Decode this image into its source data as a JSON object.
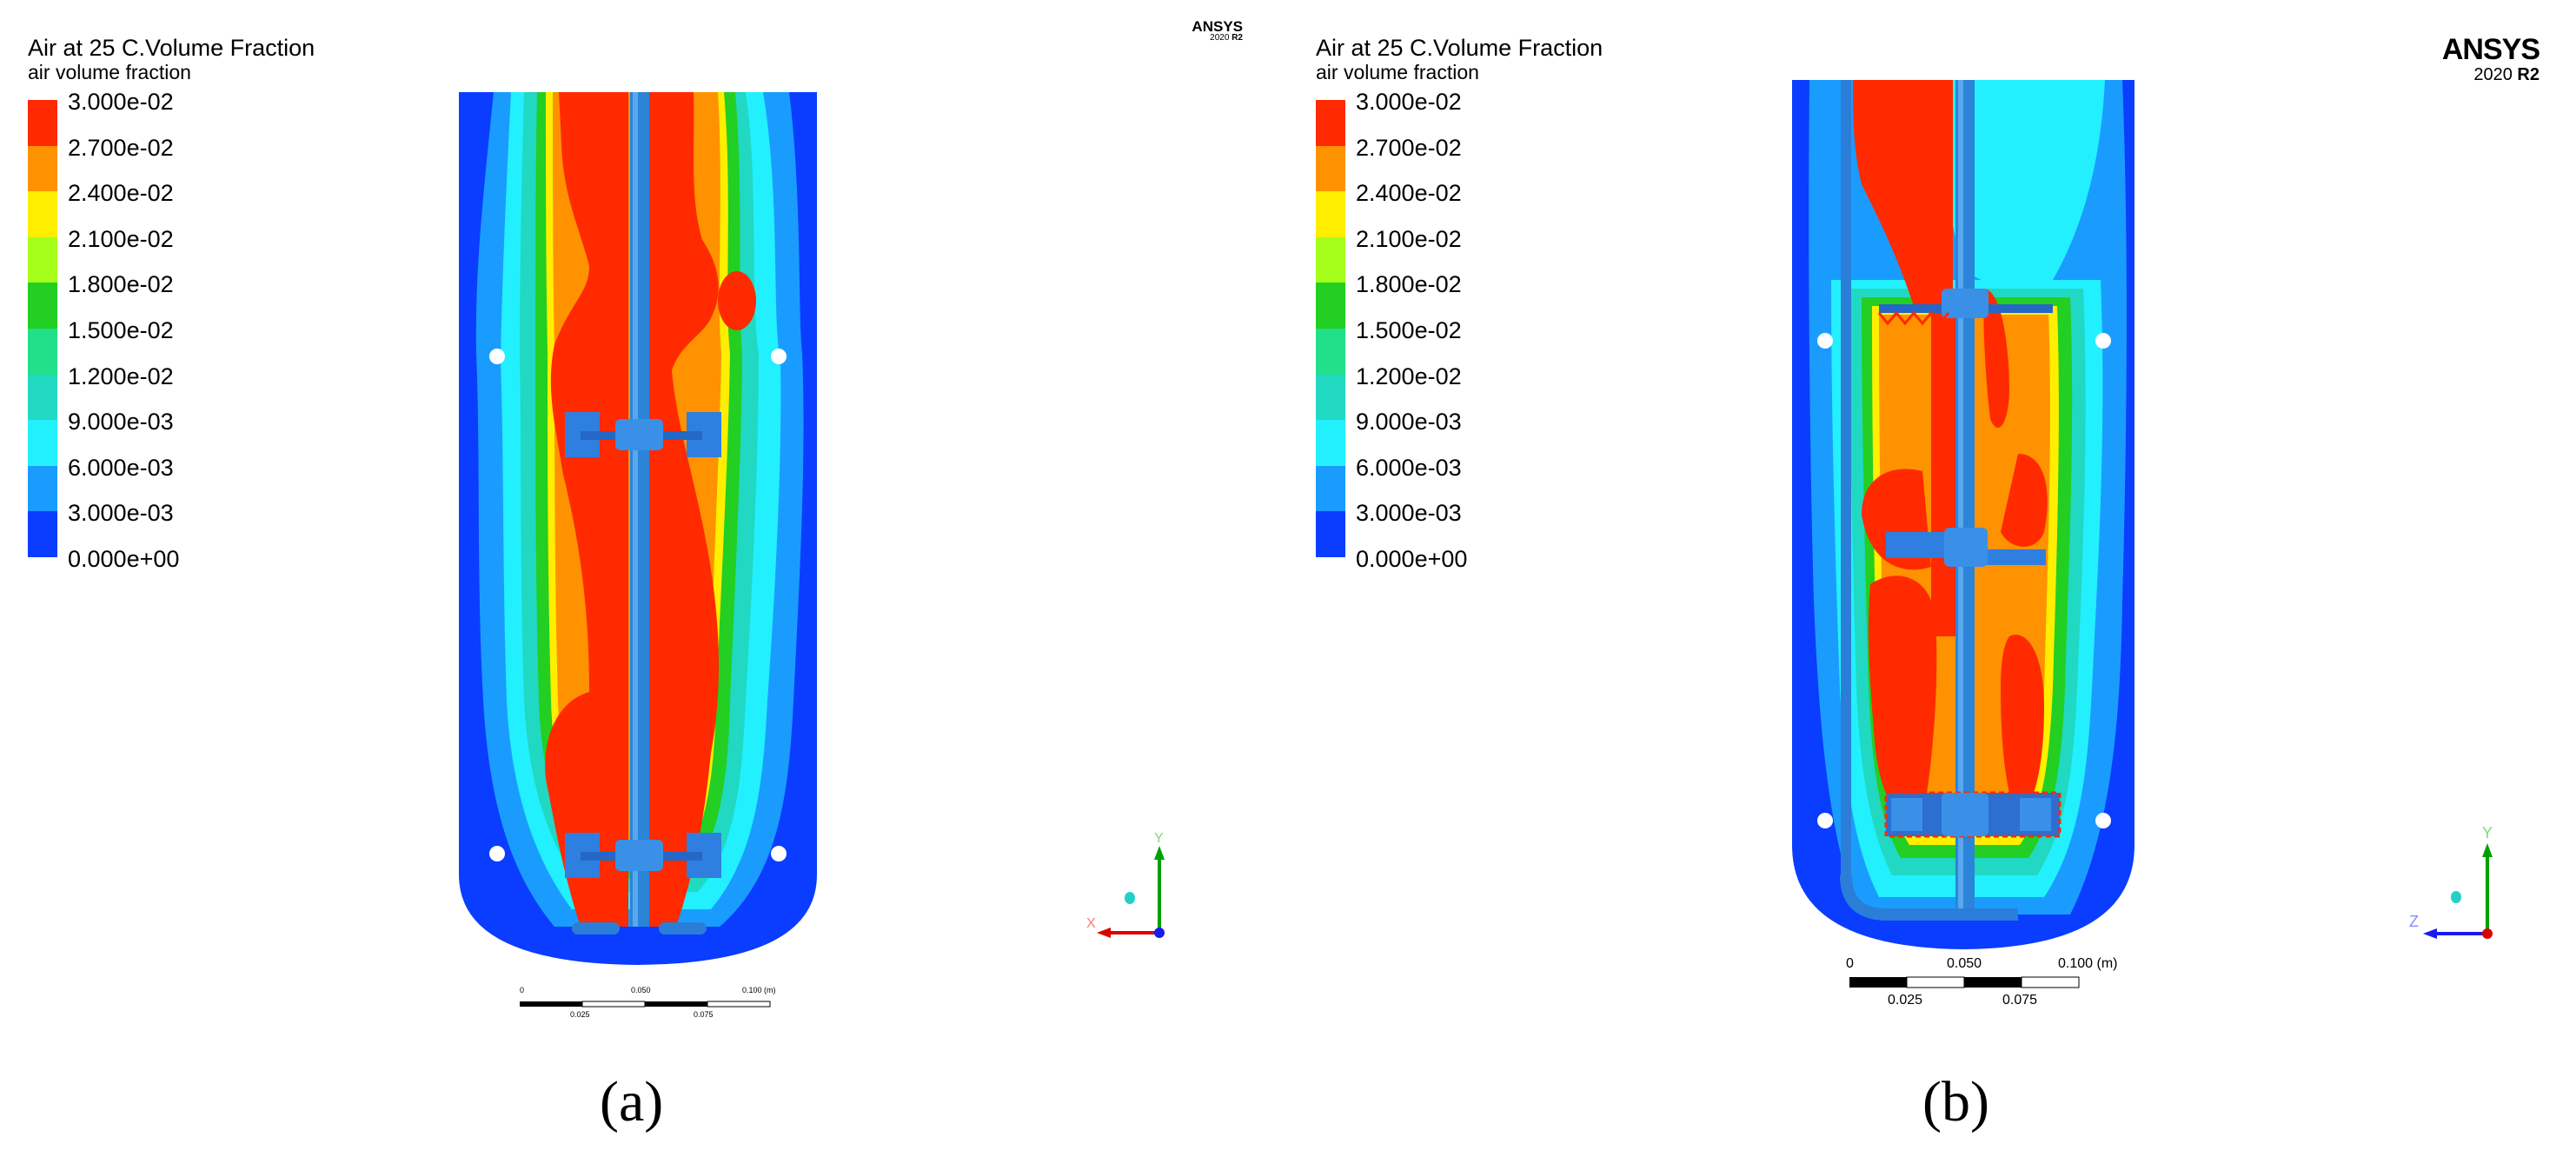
{
  "colors": {
    "background": "#ffffff",
    "scale": [
      "#ff2a00",
      "#ff9200",
      "#ffee00",
      "#a6ff1a",
      "#22cf22",
      "#22e08a",
      "#21d8c2",
      "#22f0ff",
      "#1a9cff",
      "#0a3dff"
    ],
    "axis_x": "#dd0000",
    "axis_y": "#00a000",
    "axis_z": "#1a1aee"
  },
  "legend": {
    "title": "Air at 25 C.Volume Fraction",
    "subtitle": "air volume fraction",
    "labels": [
      "3.000e-02",
      "2.700e-02",
      "2.400e-02",
      "2.100e-02",
      "1.800e-02",
      "1.500e-02",
      "1.200e-02",
      "9.000e-03",
      "6.000e-03",
      "3.000e-03",
      "0.000e+00"
    ]
  },
  "logo": {
    "brand": "ANSYS",
    "version_year": "2020",
    "version_rel": "R2"
  },
  "panels": [
    {
      "caption": "(a)",
      "scale_bar": {
        "top_labels": [
          "0",
          "0.050",
          "0.100 (m)"
        ],
        "bottom_labels": [
          "0.025",
          "0.075"
        ]
      },
      "triad": {
        "vertical": "Y",
        "horizontal": "X"
      }
    },
    {
      "caption": "(b)",
      "scale_bar": {
        "top_labels": [
          "0",
          "0.050",
          "0.100 (m)"
        ],
        "bottom_labels": [
          "0.025",
          "0.075"
        ]
      },
      "triad": {
        "vertical": "Y",
        "horizontal": "Z"
      }
    }
  ]
}
